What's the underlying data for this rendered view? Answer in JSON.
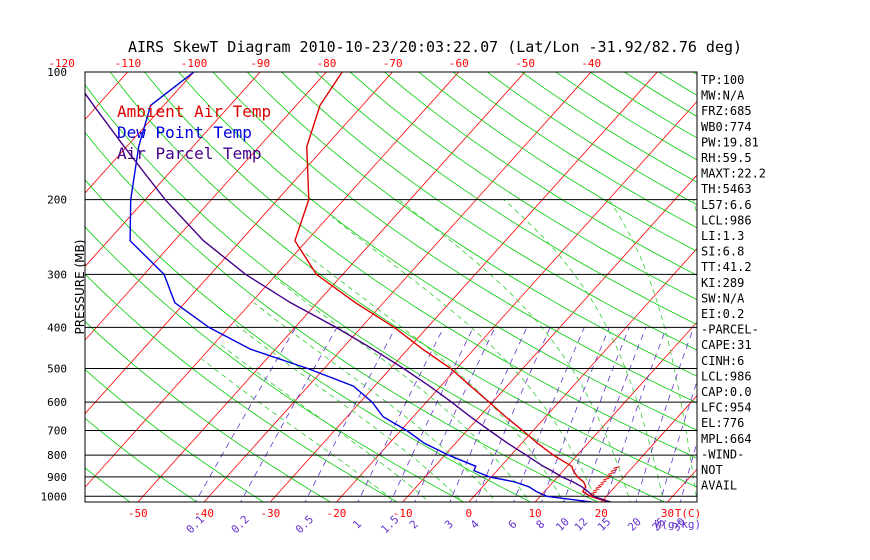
{
  "title": "AIRS SkewT Diagram 2010-10-23/20:03:22.07 (Lat/Lon -31.92/82.76 deg)",
  "colors": {
    "isotherm": "#ff0000",
    "dry_adiabat": "#00cc00",
    "moist_adiabat": "#33cc33",
    "mixing_ratio": "#6633cc",
    "temperature": "#dd0000",
    "dewpoint": "#0000dd",
    "parcel": "#440088",
    "frame": "#000000"
  },
  "legend": {
    "ambient": "Ambient Air Temp",
    "dewpoint": "Dew Point Temp",
    "parcel": "Air Parcel Temp"
  },
  "axes": {
    "ylabel": "PRESSURE (MB)",
    "pressure_ticks": [
      "100",
      "200",
      "300",
      "400",
      "500",
      "600",
      "700",
      "800",
      "900",
      "1000"
    ],
    "top_temp_ticks": [
      "-120",
      "-110",
      "-100",
      "-90",
      "-80",
      "-70",
      "-60",
      "-50",
      "-40"
    ],
    "bottom_temp_ticks": [
      "-50",
      "-40",
      "-30",
      "-20",
      "-10",
      "0",
      "10",
      "20",
      "30"
    ],
    "bottom_unit": "T(C)",
    "mixing_ratio_ticks": [
      "0.1",
      "0.2",
      "0.5",
      "1",
      "1.5",
      "2",
      "3",
      "4",
      "6",
      "8",
      "10",
      "12",
      "15",
      "20",
      "25",
      "30",
      "40"
    ],
    "mixing_ratio_unit": "W(g/kg)"
  },
  "stats": [
    "TP:100",
    "MW:N/A",
    "FRZ:685",
    "WB0:774",
    "PW:19.81",
    "RH:59.5",
    "MAXT:22.2",
    "TH:5463",
    "L57:6.6",
    "LCL:986",
    "LI:1.3",
    "SI:6.8",
    "TT:41.2",
    "KI:289",
    "SW:N/A",
    "EI:0.2",
    "-PARCEL-",
    "CAPE:31",
    "CINH:6",
    "LCL:986",
    "CAP:0.0",
    "LFC:954",
    "EL:776",
    "MPL:664",
    "-WIND-",
    "NOT",
    "AVAIL"
  ],
  "chart_data": {
    "type": "line",
    "title": "AIRS SkewT Diagram 2010-10-23/20:03:22.07 (Lat/Lon -31.92/82.76 deg)",
    "ylabel": "PRESSURE (MB)",
    "xlabel": "T(C)",
    "y_scale": "log-pressure, inverted",
    "ylim": [
      1050,
      100
    ],
    "pressure_levels": [
      1040,
      1000,
      975,
      950,
      925,
      900,
      870,
      850,
      800,
      750,
      700,
      650,
      600,
      550,
      500,
      450,
      400,
      350,
      300,
      250,
      200,
      150,
      120,
      100
    ],
    "series": [
      {
        "name": "Ambient Air Temp",
        "values": [
          22,
          17.6,
          15.8,
          15.6,
          14.6,
          13,
          11.5,
          10.7,
          6.4,
          2.4,
          -1.6,
          -6,
          -10.5,
          -15.5,
          -20.9,
          -27.8,
          -35,
          -44.2,
          -54,
          -61.8,
          -65.3,
          -72.8,
          -76.4,
          -77.6
        ]
      },
      {
        "name": "Dew Point Temp",
        "values": [
          20.5,
          11,
          8.8,
          7,
          4.2,
          -0.3,
          -3.5,
          -3.8,
          -9.4,
          -14.7,
          -19.1,
          -24.5,
          -28.2,
          -33.2,
          -42.5,
          -53.8,
          -63,
          -71.5,
          -77,
          -86.7,
          -92.2,
          -98.2,
          -102,
          -100
        ]
      },
      {
        "name": "Air Parcel Temp",
        "values": [
          22.3,
          18,
          16.6,
          15,
          13,
          10.6,
          8.2,
          6.4,
          2.3,
          -2.1,
          -6.6,
          -11.3,
          -16.2,
          -21.7,
          -28,
          -35.3,
          -43.8,
          -54,
          -64.7,
          -75.6,
          -87,
          -100.4,
          -110.6,
          -118.8
        ]
      }
    ]
  }
}
